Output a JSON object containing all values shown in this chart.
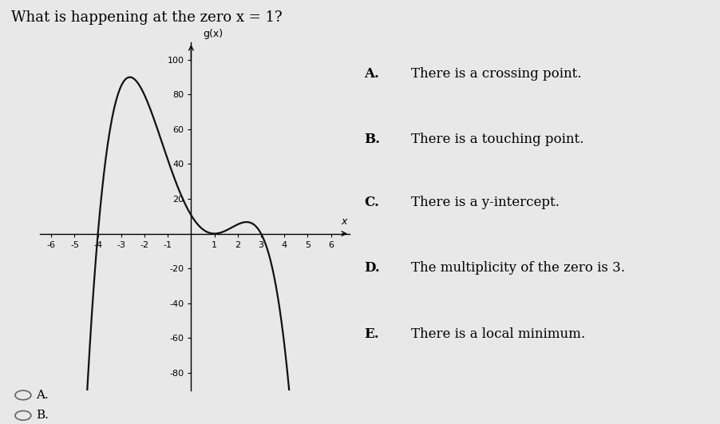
{
  "title": "What is happening at the zero x = 1?",
  "ylabel": "g(x)",
  "xlabel": "x",
  "xlim": [
    -6.5,
    6.8
  ],
  "ylim": [
    -90,
    110
  ],
  "xticks_neg": [
    -6,
    -5,
    -4,
    -3,
    -2,
    -1
  ],
  "xticks_pos": [
    1,
    2,
    3,
    4,
    5,
    6
  ],
  "yticks": [
    -80,
    -60,
    -40,
    -20,
    20,
    40,
    60,
    80,
    100
  ],
  "background_color": "#e8e8e8",
  "curve_color": "#111111",
  "choices_labels": [
    "A.",
    "B.",
    "C.",
    "D.",
    "E."
  ],
  "choices_text": [
    "There is a crossing point.",
    "There is a touching point.",
    "There is a y-intercept.",
    "The multiplicity of the zero is 3.",
    "There is a local minimum."
  ],
  "answer_labels": [
    "A.",
    "B."
  ],
  "title_fontsize": 13,
  "axis_label_fontsize": 9,
  "tick_fontsize": 8,
  "choice_fontsize": 12
}
